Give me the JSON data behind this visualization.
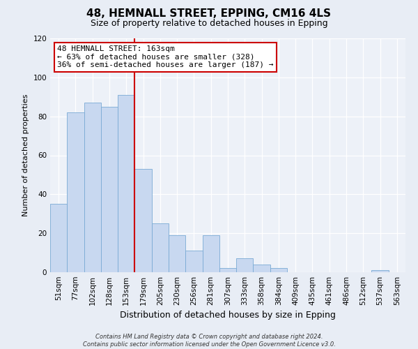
{
  "title": "48, HEMNALL STREET, EPPING, CM16 4LS",
  "subtitle": "Size of property relative to detached houses in Epping",
  "xlabel": "Distribution of detached houses by size in Epping",
  "ylabel": "Number of detached properties",
  "categories": [
    "51sqm",
    "77sqm",
    "102sqm",
    "128sqm",
    "153sqm",
    "179sqm",
    "205sqm",
    "230sqm",
    "256sqm",
    "281sqm",
    "307sqm",
    "333sqm",
    "358sqm",
    "384sqm",
    "409sqm",
    "435sqm",
    "461sqm",
    "486sqm",
    "512sqm",
    "537sqm",
    "563sqm"
  ],
  "values": [
    35,
    82,
    87,
    85,
    91,
    53,
    25,
    19,
    11,
    19,
    2,
    7,
    4,
    2,
    0,
    0,
    0,
    0,
    0,
    1,
    0
  ],
  "bar_color": "#c8d8f0",
  "bar_edge_color": "#7aaad4",
  "vline_x": 4.5,
  "vline_color": "#cc0000",
  "annotation_text": "48 HEMNALL STREET: 163sqm\n← 63% of detached houses are smaller (328)\n36% of semi-detached houses are larger (187) →",
  "annotation_box_facecolor": "#ffffff",
  "annotation_box_edgecolor": "#cc0000",
  "ylim": [
    0,
    120
  ],
  "yticks": [
    0,
    20,
    40,
    60,
    80,
    100,
    120
  ],
  "footer_line1": "Contains HM Land Registry data © Crown copyright and database right 2024.",
  "footer_line2": "Contains public sector information licensed under the Open Government Licence v3.0.",
  "bg_color": "#e8edf5",
  "plot_bg_color": "#edf1f8",
  "grid_color": "#ffffff",
  "title_fontsize": 11,
  "subtitle_fontsize": 9,
  "xlabel_fontsize": 9,
  "ylabel_fontsize": 8,
  "tick_fontsize": 7.5,
  "annotation_fontsize": 8,
  "footer_fontsize": 6
}
